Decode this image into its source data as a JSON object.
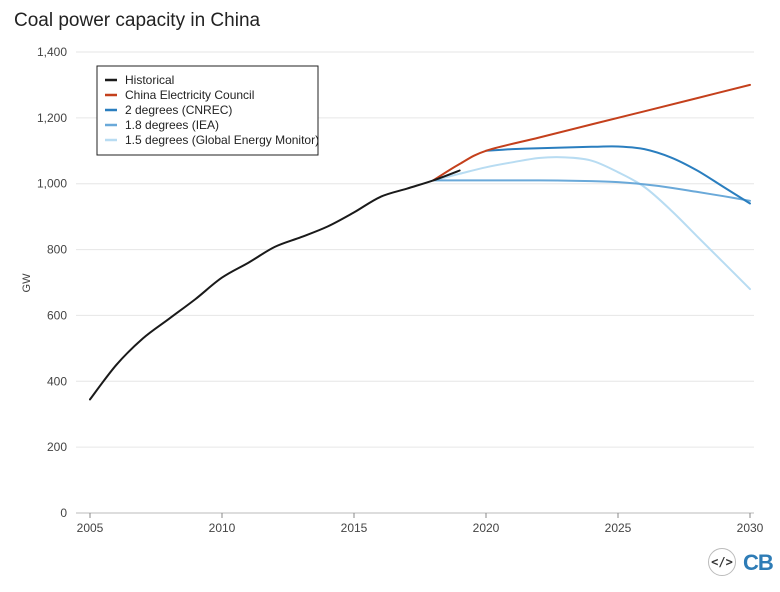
{
  "chart_data": {
    "type": "line",
    "title": "Coal power capacity in China",
    "xlabel": "",
    "ylabel": "GW",
    "xlim": [
      2005,
      2030
    ],
    "ylim": [
      0,
      1400
    ],
    "xticks": [
      2005,
      2010,
      2015,
      2020,
      2025,
      2030
    ],
    "yticks": [
      0,
      200,
      400,
      600,
      800,
      1000,
      1200,
      1400
    ],
    "ytick_labels": [
      "0",
      "200",
      "400",
      "600",
      "800",
      "1,000",
      "1,200",
      "1,400"
    ],
    "legend_position": "top-left",
    "series": [
      {
        "name": "Historical",
        "color": "#1a1a1a",
        "x": [
          2005,
          2006,
          2007,
          2008,
          2009,
          2010,
          2011,
          2012,
          2013,
          2014,
          2015,
          2016,
          2017,
          2018,
          2019
        ],
        "y": [
          345,
          450,
          530,
          590,
          650,
          715,
          760,
          808,
          838,
          870,
          913,
          960,
          985,
          1010,
          1040
        ]
      },
      {
        "name": "China Electricity Council",
        "color": "#c4401c",
        "x": [
          2018,
          2019,
          2020,
          2022,
          2024,
          2026,
          2028,
          2030
        ],
        "y": [
          1010,
          1060,
          1100,
          1140,
          1180,
          1220,
          1260,
          1300
        ]
      },
      {
        "name": "2 degrees (CNREC)",
        "color": "#2a7ebf",
        "x": [
          2020,
          2021,
          2022,
          2023,
          2024,
          2025,
          2026,
          2027,
          2028,
          2029,
          2030
        ],
        "y": [
          1100,
          1105,
          1108,
          1110,
          1112,
          1113,
          1105,
          1080,
          1040,
          990,
          940
        ]
      },
      {
        "name": "1.8 degrees (IEA)",
        "color": "#6aa9d9",
        "x": [
          2018,
          2020,
          2022,
          2024,
          2025,
          2026,
          2027,
          2028,
          2029,
          2030
        ],
        "y": [
          1010,
          1010,
          1010,
          1008,
          1005,
          998,
          988,
          975,
          962,
          948
        ]
      },
      {
        "name": "1.5 degrees (Global Energy Monitor)",
        "color": "#b8dcf2",
        "x": [
          2018,
          2019,
          2020,
          2021,
          2022,
          2023,
          2024,
          2025,
          2026,
          2027,
          2028,
          2029,
          2030
        ],
        "y": [
          1010,
          1030,
          1050,
          1065,
          1078,
          1080,
          1070,
          1035,
          990,
          920,
          840,
          760,
          680
        ]
      }
    ]
  },
  "branding": {
    "code_logo": "</>",
    "cb_logo": "CB"
  }
}
